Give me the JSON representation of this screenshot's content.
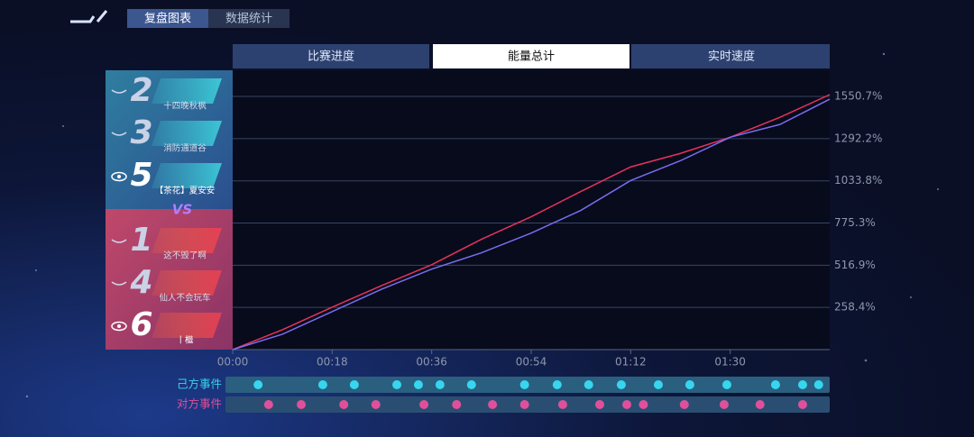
{
  "tabs": [
    "复盘图表",
    "数据统计"
  ],
  "chart_tabs": [
    "比赛进度",
    "能量总计",
    "实时速度"
  ],
  "teams": [
    {
      "players": [
        {
          "rank": 2,
          "name": "十四晚秋枫"
        },
        {
          "rank": 3,
          "name": "消防通道谷"
        },
        {
          "rank": 5,
          "name": "【茶花】夏安安"
        }
      ]
    },
    {
      "players": [
        {
          "rank": 1,
          "name": "这不毁了啊"
        },
        {
          "rank": 4,
          "name": "仙人不会玩车"
        },
        {
          "rank": 6,
          "name": "丨檵"
        }
      ]
    }
  ],
  "versus": "VS",
  "chart_data": {
    "type": "line",
    "x": [
      0,
      9,
      18,
      27,
      36,
      45,
      54,
      63,
      72,
      81,
      90,
      99,
      108
    ],
    "series": [
      {
        "color": "#e8325a",
        "values": [
          0,
          122,
          260,
          393,
          520,
          676,
          814,
          969,
          1119,
          1202,
          1301,
          1423,
          1562
        ]
      },
      {
        "color": "#7a6cf0",
        "values": [
          0,
          94,
          233,
          371,
          493,
          593,
          714,
          853,
          1036,
          1157,
          1301,
          1379,
          1534
        ]
      }
    ],
    "xlim": [
      0,
      108
    ],
    "xticks": [
      {
        "value": 0,
        "label": "00:00"
      },
      {
        "value": 18,
        "label": "00:18"
      },
      {
        "value": 36,
        "label": "00:36"
      },
      {
        "value": 54,
        "label": "00:54"
      },
      {
        "value": 72,
        "label": "01:12"
      },
      {
        "value": 90,
        "label": "01:30"
      }
    ],
    "ylim": [
      0,
      1711
    ],
    "yticks": [
      {
        "value": 258.4,
        "label": "258.4%"
      },
      {
        "value": 516.9,
        "label": "516.9%"
      },
      {
        "value": 775.3,
        "label": "775.3%"
      },
      {
        "value": 1033.8,
        "label": "1033.8%"
      },
      {
        "value": 1292.2,
        "label": "1292.2%"
      },
      {
        "value": 1550.7,
        "label": "1550.7%"
      }
    ],
    "grid": true
  },
  "events": [
    {
      "label": "己方事件",
      "color": "#35d6ee",
      "times": [
        4.6,
        16.3,
        22.0,
        29.7,
        33.6,
        37.5,
        43.2,
        52.8,
        58.7,
        64.4,
        70.3,
        77.0,
        82.7,
        89.4,
        98.2,
        103.1,
        106.0
      ]
    },
    {
      "label": "对方事件",
      "color": "#e0509a",
      "times": [
        6.5,
        12.4,
        20.1,
        25.9,
        34.6,
        40.5,
        47.0,
        52.8,
        59.7,
        66.4,
        71.3,
        74.3,
        81.7,
        88.9,
        95.4,
        103.1
      ]
    }
  ]
}
